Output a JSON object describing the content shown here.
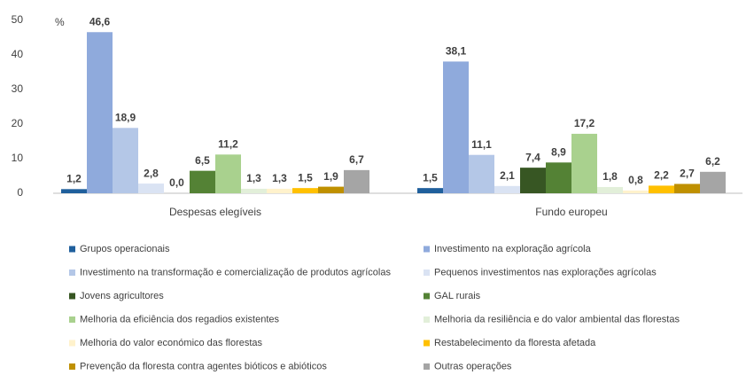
{
  "chart_data": {
    "type": "bar",
    "y_label": "%",
    "categories": [
      "Despesas elegíveis",
      "Fundo europeu"
    ],
    "ylim": [
      0,
      50
    ],
    "yticks": [
      0,
      10,
      20,
      30,
      40,
      50
    ],
    "grid": false,
    "series": [
      {
        "name": "Grupos operacionais",
        "color": "#1f5f9c",
        "values": [
          1.2,
          1.5
        ],
        "value_labels": [
          "1,2",
          "1,5"
        ]
      },
      {
        "name": "Investimento na exploração agrícola",
        "color": "#8faadc",
        "values": [
          46.6,
          38.1
        ],
        "value_labels": [
          "46,6",
          "38,1"
        ]
      },
      {
        "name": "Investimento na transformação e comercialização de produtos agrícolas",
        "color": "#b4c7e7",
        "values": [
          18.9,
          11.1
        ],
        "value_labels": [
          "18,9",
          "11,1"
        ]
      },
      {
        "name": "Pequenos investimentos nas explorações agrícolas",
        "color": "#dae3f3",
        "values": [
          2.8,
          2.1
        ],
        "value_labels": [
          "2,8",
          "2,1"
        ]
      },
      {
        "name": "Jovens agricultores",
        "color": "#375623",
        "values": [
          0.0,
          7.4
        ],
        "value_labels": [
          "0,0",
          "7,4"
        ]
      },
      {
        "name": "GAL rurais",
        "color": "#548235",
        "values": [
          6.5,
          8.9
        ],
        "value_labels": [
          "6,5",
          "8,9"
        ]
      },
      {
        "name": "Melhoria da eficiência dos regadios existentes",
        "color": "#a9d18e",
        "values": [
          11.2,
          17.2
        ],
        "value_labels": [
          "11,2",
          "17,2"
        ]
      },
      {
        "name": "Melhoria da resiliência e do valor ambiental das florestas",
        "color": "#e2efd9",
        "values": [
          1.3,
          1.8
        ],
        "value_labels": [
          "1,3",
          "1,8"
        ]
      },
      {
        "name": "Melhoria do valor económico das florestas",
        "color": "#fff2cc",
        "values": [
          1.3,
          0.8
        ],
        "value_labels": [
          "1,3",
          "0,8"
        ]
      },
      {
        "name": "Restabelecimento da floresta afetada",
        "color": "#ffc000",
        "values": [
          1.5,
          2.2
        ],
        "value_labels": [
          "1,5",
          "2,2"
        ]
      },
      {
        "name": "Prevenção da floresta contra agentes bióticos e abióticos",
        "color": "#bf9000",
        "values": [
          1.9,
          2.7
        ],
        "value_labels": [
          "1,9",
          "2,7"
        ]
      },
      {
        "name": "Outras operações",
        "color": "#a5a5a5",
        "values": [
          6.7,
          6.2
        ],
        "value_labels": [
          "6,7",
          "6,2"
        ]
      }
    ]
  }
}
